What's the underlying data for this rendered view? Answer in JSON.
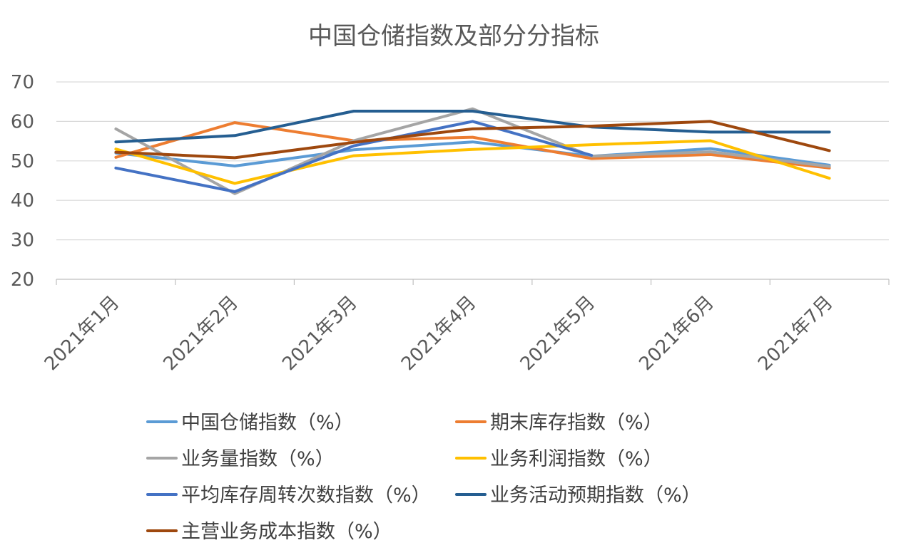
{
  "chart_data": {
    "type": "line",
    "title": "中国仓储指数及部分分指标",
    "xlabel": "",
    "ylabel": "",
    "ylim": [
      20,
      70
    ],
    "yticks": [
      20,
      30,
      40,
      50,
      60,
      70
    ],
    "grid": true,
    "legend_position": "bottom",
    "categories": [
      "2021年1月",
      "2021年2月",
      "2021年3月",
      "2021年4月",
      "2021年5月",
      "2021年6月",
      "2021年7月"
    ],
    "series": [
      {
        "name": "中国仓储指数（%）",
        "color": "#5B9BD5",
        "values": [
          52.0,
          48.7,
          52.8,
          54.8,
          51.2,
          53.1,
          48.9
        ]
      },
      {
        "name": "期末库存指数（%）",
        "color": "#ED7D31",
        "values": [
          50.9,
          59.7,
          55.1,
          56.0,
          50.6,
          51.6,
          48.2
        ]
      },
      {
        "name": "业务量指数（%）",
        "color": "#A5A5A5",
        "values": [
          58.1,
          41.7,
          55.1,
          63.2,
          51.2,
          52.3,
          48.6
        ]
      },
      {
        "name": "业务利润指数（%）",
        "color": "#FFC000",
        "values": [
          53.0,
          44.3,
          51.3,
          52.9,
          54.1,
          55.1,
          45.6
        ]
      },
      {
        "name": "平均库存周转次数指数（%）",
        "color": "#4472C4",
        "values": [
          48.2,
          42.2,
          53.8,
          60.0,
          51.4,
          null,
          null
        ]
      },
      {
        "name": "业务活动预期指数（%）",
        "color": "#255E91",
        "values": [
          54.8,
          56.4,
          62.6,
          62.6,
          58.6,
          57.3,
          57.3
        ]
      },
      {
        "name": "主营业务成本指数（%）",
        "color": "#9E480E",
        "values": [
          52.2,
          50.8,
          54.7,
          58.1,
          58.8,
          60.0,
          52.6
        ]
      }
    ]
  }
}
